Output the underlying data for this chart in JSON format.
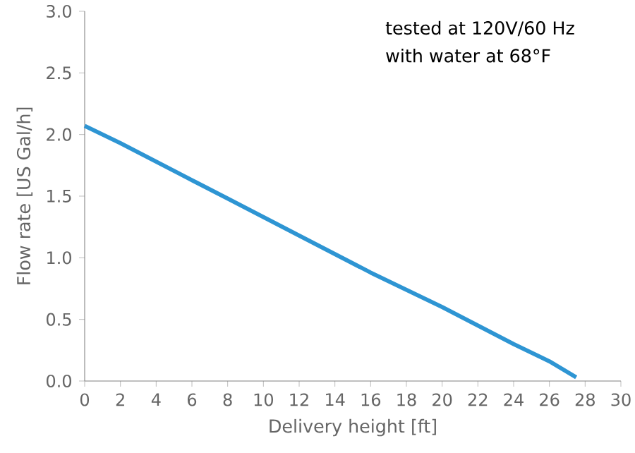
{
  "chart_data": {
    "type": "line",
    "xlabel": "Delivery height [ft]",
    "ylabel": "Flow rate [US Gal/h]",
    "annotations": [
      "tested at 120V/60 Hz",
      "with water at 68°F"
    ],
    "series": [
      {
        "color": "#2e95d3",
        "x": [
          0,
          2,
          4,
          6,
          8,
          10,
          12,
          14,
          16,
          18,
          20,
          22,
          24,
          26,
          27.5
        ],
        "values": [
          2.07,
          1.93,
          1.78,
          1.63,
          1.48,
          1.33,
          1.18,
          1.03,
          0.88,
          0.74,
          0.6,
          0.45,
          0.3,
          0.16,
          0.03
        ]
      }
    ],
    "xlim": [
      0,
      30
    ],
    "ylim": [
      0,
      3
    ],
    "xticks": [
      0,
      2,
      4,
      6,
      8,
      10,
      12,
      14,
      16,
      18,
      20,
      22,
      24,
      26,
      28,
      30
    ],
    "yticks": [
      {
        "value": 0,
        "label": "0.0"
      },
      {
        "value": 0.5,
        "label": "0.5"
      },
      {
        "value": 1,
        "label": "1.0"
      },
      {
        "value": 1.5,
        "label": "1.5"
      },
      {
        "value": 2,
        "label": "2.0"
      },
      {
        "value": 2.5,
        "label": "2.5"
      },
      {
        "value": 3,
        "label": "3.0"
      }
    ],
    "grid": false
  }
}
